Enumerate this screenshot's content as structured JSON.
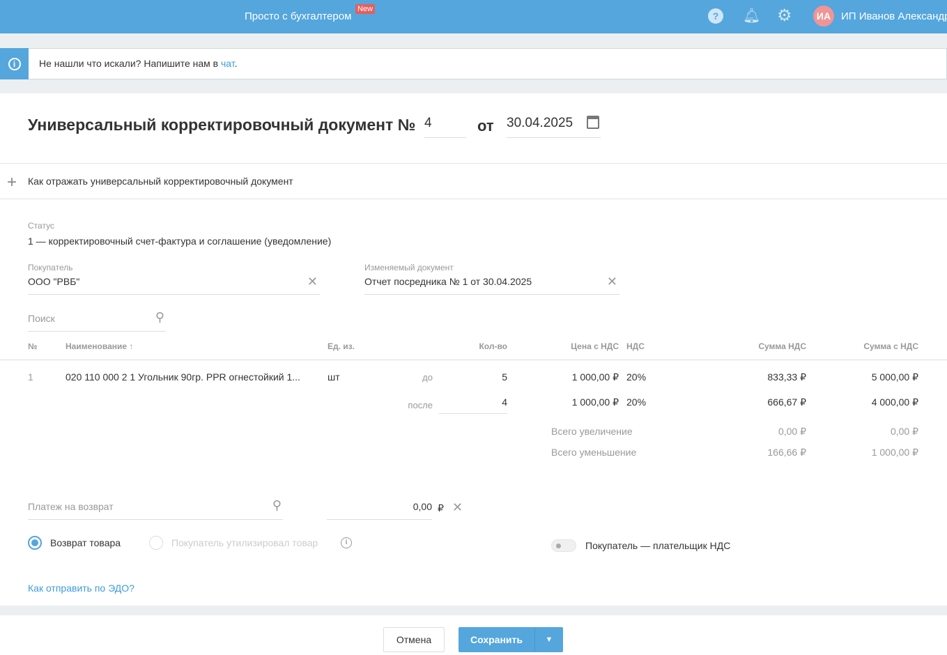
{
  "header": {
    "product": "Просто с бухгалтером",
    "new_badge": "New",
    "avatar": "ИА",
    "user": "ИП Иванов Александр"
  },
  "banner": {
    "text": "Не нашли что искали? Напишите нам в ",
    "link": "чат",
    "tail": "."
  },
  "doc": {
    "title": "Универсальный корректировочный документ №",
    "number": "4",
    "from": "от",
    "date": "30.04.2025"
  },
  "howto": "Как отражать универсальный корректировочный документ",
  "status": {
    "label": "Статус",
    "value": "1 — корректировочный счет-фактура и соглашение (уведомление)"
  },
  "buyer": {
    "label": "Покупатель",
    "value": "ООО \"РВБ\""
  },
  "changed_doc": {
    "label": "Изменяемый документ",
    "value": "Отчет посредника № 1 от 30.04.2025"
  },
  "search": {
    "placeholder": "Поиск"
  },
  "table": {
    "headers": {
      "num": "№",
      "name": "Наименование ↑",
      "unit": "Ед. из.",
      "qty": "Кол-во",
      "price": "Цена с НДС",
      "vat": "НДС",
      "vat_sum": "Сумма НДС",
      "total": "Сумма с НДС"
    },
    "row": {
      "num": "1",
      "name": "020 110 000 2 1 Угольник 90гр. PPR огнестойкий 1...",
      "unit": "шт",
      "before": {
        "label": "до",
        "qty": "5",
        "price": "1 000,00 ₽",
        "vat": "20%",
        "vat_sum": "833,33 ₽",
        "total": "5 000,00 ₽"
      },
      "after": {
        "label": "после",
        "qty": "4",
        "price": "1 000,00 ₽",
        "vat": "20%",
        "vat_sum": "666,67 ₽",
        "total": "4 000,00 ₽"
      }
    },
    "increase": {
      "label": "Всего увеличение",
      "vat_sum": "0,00 ₽",
      "total": "0,00 ₽"
    },
    "decrease": {
      "label": "Всего уменьшение",
      "vat_sum": "166,66 ₽",
      "total": "1 000,00 ₽"
    }
  },
  "payment": {
    "placeholder": "Платеж на возврат",
    "amount": "0,00",
    "currency": "₽"
  },
  "radios": {
    "return": "Возврат товара",
    "utilized": "Покупатель утилизировал товар",
    "selected": "return"
  },
  "toggle": {
    "label": "Покупатель — плательщик НДС",
    "on": false
  },
  "edo_link": "Как отправить по ЭДО?",
  "footer": {
    "cancel": "Отмена",
    "save": "Сохранить"
  }
}
